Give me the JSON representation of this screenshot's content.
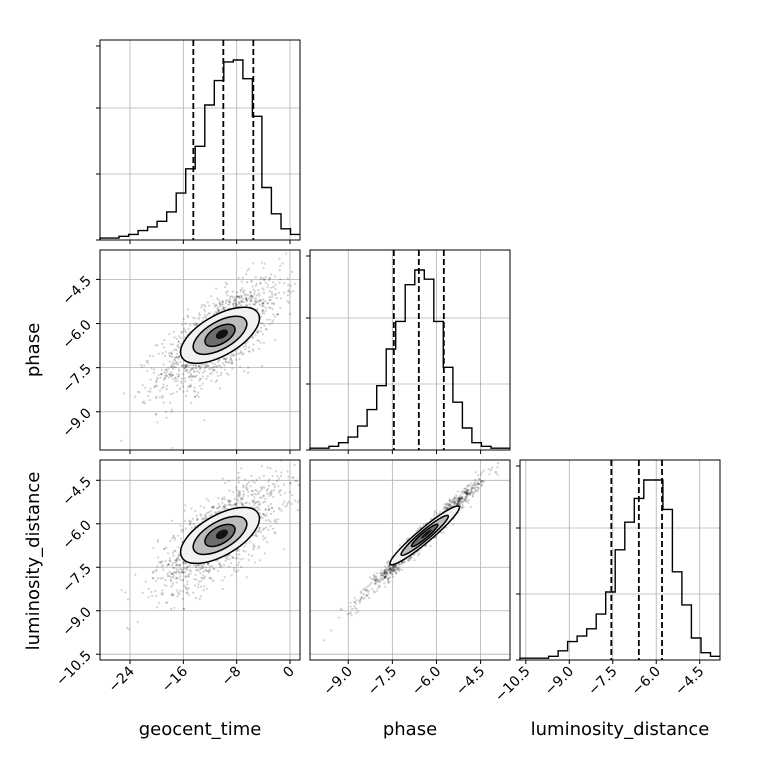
{
  "chart_data": {
    "type": "corner",
    "parameters": [
      "geocent_time",
      "phase",
      "luminosity_distance"
    ],
    "axis_labels": {
      "geocent_time": "geocent_time",
      "phase": "phase",
      "luminosity_distance": "luminosity_distance"
    },
    "ranges": {
      "geocent_time": [
        -28.5,
        1.5
      ],
      "phase": [
        -10.3,
        -3.5
      ],
      "luminosity_distance": [
        -10.7,
        -3.8
      ]
    },
    "ticks": {
      "geocent_time": [
        "-24",
        "-16",
        "-8",
        "0"
      ],
      "phase": [
        "-9.0",
        "-7.5",
        "-6.0",
        "-4.5"
      ],
      "luminosity_distance": [
        "-10.5",
        "-9.0",
        "-7.5",
        "-6.0",
        "-4.5"
      ]
    },
    "tick_values": {
      "geocent_time": [
        -24,
        -16,
        -8,
        0
      ],
      "phase": [
        -9.0,
        -7.5,
        -6.0,
        -4.5
      ],
      "luminosity_distance": [
        -10.5,
        -9.0,
        -7.5,
        -6.0,
        -4.5
      ]
    },
    "quantiles": {
      "geocent_time": [
        -14.5,
        -10.0,
        -5.5
      ],
      "phase": [
        -7.45,
        -6.6,
        -5.75
      ],
      "luminosity_distance": [
        -7.55,
        -6.6,
        -5.8
      ]
    },
    "marginals": {
      "geocent_time": {
        "bins": [
          -28.5,
          1.5
        ],
        "counts": [
          1,
          1,
          2,
          3,
          5,
          7,
          10,
          15,
          25,
          38,
          50,
          72,
          85,
          95,
          96,
          86,
          66,
          28,
          14,
          6,
          3
        ]
      },
      "phase": {
        "bins": [
          -10.3,
          -3.5
        ],
        "counts": [
          1,
          1,
          2,
          4,
          7,
          13,
          22,
          35,
          55,
          70,
          90,
          98,
          93,
          70,
          45,
          26,
          12,
          4,
          2,
          1,
          1
        ]
      },
      "luminosity_distance": {
        "bins": [
          -10.7,
          -3.8
        ],
        "counts": [
          1,
          1,
          1,
          2,
          5,
          10,
          13,
          17,
          25,
          37,
          60,
          75,
          88,
          98,
          98,
          82,
          48,
          30,
          12,
          4,
          2
        ]
      }
    },
    "grid": true,
    "levels": 3
  }
}
